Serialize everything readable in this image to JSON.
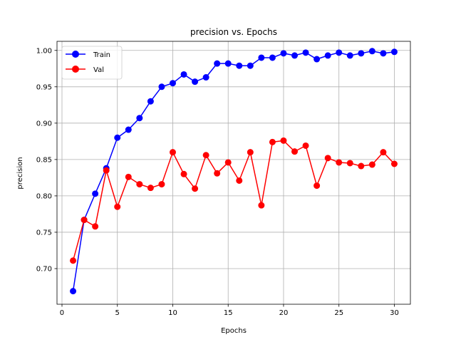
{
  "chart_data": {
    "type": "line",
    "title": "precision vs. Epochs",
    "xlabel": "Epochs",
    "ylabel": "precision",
    "xlim": [
      -0.45,
      31.45
    ],
    "ylim": [
      0.651,
      1.0125
    ],
    "x_ticks": [
      0,
      5,
      10,
      15,
      20,
      25,
      30
    ],
    "y_ticks": [
      0.7,
      0.75,
      0.8,
      0.85,
      0.9,
      0.95,
      1.0
    ],
    "x_tick_labels": [
      "0",
      "5",
      "10",
      "15",
      "20",
      "25",
      "30"
    ],
    "y_tick_labels": [
      "0.70",
      "0.75",
      "0.80",
      "0.85",
      "0.90",
      "0.95",
      "1.00"
    ],
    "grid": true,
    "legend_position": "upper left",
    "x": [
      1,
      2,
      3,
      4,
      5,
      6,
      7,
      8,
      9,
      10,
      11,
      12,
      13,
      14,
      15,
      16,
      17,
      18,
      19,
      20,
      21,
      22,
      23,
      24,
      25,
      26,
      27,
      28,
      29,
      30
    ],
    "series": [
      {
        "name": "Train",
        "color": "#0000ff",
        "marker": "circle",
        "values": [
          0.669,
          0.767,
          0.803,
          0.838,
          0.88,
          0.891,
          0.907,
          0.93,
          0.95,
          0.955,
          0.967,
          0.957,
          0.963,
          0.982,
          0.982,
          0.979,
          0.979,
          0.99,
          0.99,
          0.996,
          0.993,
          0.997,
          0.988,
          0.993,
          0.997,
          0.993,
          0.996,
          0.999,
          0.996,
          0.998
        ]
      },
      {
        "name": "Val",
        "color": "#ff0000",
        "marker": "circle",
        "values": [
          0.711,
          0.767,
          0.758,
          0.835,
          0.785,
          0.826,
          0.816,
          0.811,
          0.816,
          0.86,
          0.83,
          0.81,
          0.856,
          0.831,
          0.846,
          0.821,
          0.86,
          0.787,
          0.874,
          0.876,
          0.861,
          0.869,
          0.814,
          0.852,
          0.846,
          0.845,
          0.841,
          0.843,
          0.86,
          0.844
        ]
      }
    ]
  }
}
